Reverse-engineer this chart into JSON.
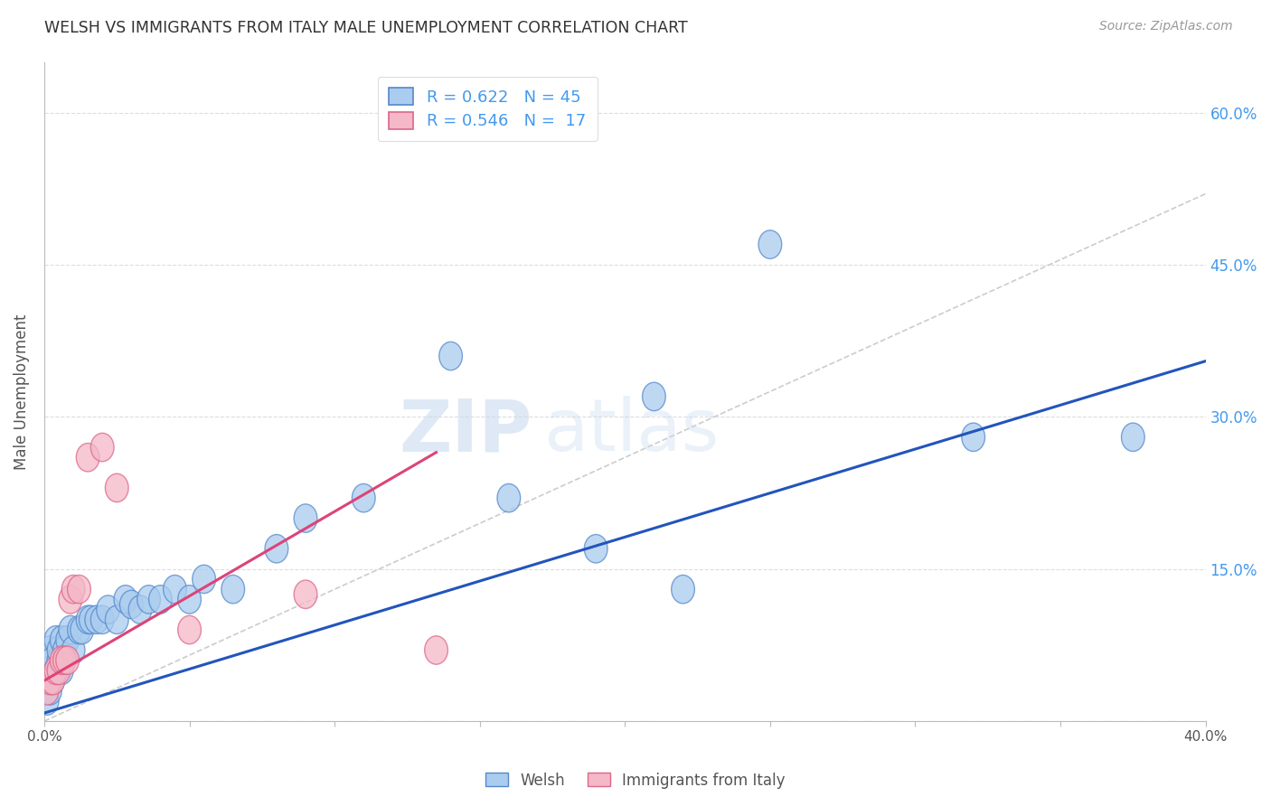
{
  "title": "WELSH VS IMMIGRANTS FROM ITALY MALE UNEMPLOYMENT CORRELATION CHART",
  "source": "Source: ZipAtlas.com",
  "ylabel": "Male Unemployment",
  "xlim": [
    0.0,
    0.4
  ],
  "ylim": [
    0.0,
    0.65
  ],
  "xticks": [
    0.0,
    0.05,
    0.1,
    0.15,
    0.2,
    0.25,
    0.3,
    0.35,
    0.4
  ],
  "ytick_positions": [
    0.0,
    0.15,
    0.3,
    0.45,
    0.6
  ],
  "yticklabels_right": [
    "",
    "15.0%",
    "30.0%",
    "45.0%",
    "60.0%"
  ],
  "grid_color": "#dddddd",
  "background_color": "#ffffff",
  "watermark": "ZIPatlas",
  "legend_welsh_r": "0.622",
  "legend_welsh_n": "45",
  "legend_italy_r": "0.546",
  "legend_italy_n": "17",
  "welsh_color": "#aaccee",
  "italy_color": "#f4b8c8",
  "welsh_edge_color": "#5588cc",
  "italy_edge_color": "#dd6688",
  "welsh_line_color": "#2255bb",
  "italy_line_color": "#dd4477",
  "trendline_color": "#cccccc",
  "welsh_x": [
    0.001,
    0.001,
    0.002,
    0.002,
    0.002,
    0.003,
    0.003,
    0.004,
    0.004,
    0.005,
    0.005,
    0.006,
    0.006,
    0.007,
    0.008,
    0.009,
    0.01,
    0.012,
    0.013,
    0.015,
    0.016,
    0.018,
    0.02,
    0.022,
    0.025,
    0.028,
    0.03,
    0.033,
    0.036,
    0.04,
    0.045,
    0.05,
    0.055,
    0.065,
    0.08,
    0.09,
    0.11,
    0.14,
    0.16,
    0.19,
    0.21,
    0.22,
    0.25,
    0.32,
    0.375
  ],
  "welsh_y": [
    0.02,
    0.04,
    0.03,
    0.05,
    0.07,
    0.04,
    0.06,
    0.05,
    0.08,
    0.06,
    0.07,
    0.05,
    0.08,
    0.07,
    0.08,
    0.09,
    0.07,
    0.09,
    0.09,
    0.1,
    0.1,
    0.1,
    0.1,
    0.11,
    0.1,
    0.12,
    0.115,
    0.11,
    0.12,
    0.12,
    0.13,
    0.12,
    0.14,
    0.13,
    0.17,
    0.2,
    0.22,
    0.36,
    0.22,
    0.17,
    0.32,
    0.13,
    0.47,
    0.28,
    0.28
  ],
  "italy_x": [
    0.001,
    0.002,
    0.003,
    0.004,
    0.005,
    0.006,
    0.007,
    0.008,
    0.009,
    0.01,
    0.012,
    0.015,
    0.02,
    0.025,
    0.05,
    0.09,
    0.135
  ],
  "italy_y": [
    0.03,
    0.04,
    0.04,
    0.05,
    0.05,
    0.06,
    0.06,
    0.06,
    0.12,
    0.13,
    0.13,
    0.26,
    0.27,
    0.23,
    0.09,
    0.125,
    0.07
  ],
  "welsh_line_x0": 0.0,
  "welsh_line_y0": 0.008,
  "welsh_line_x1": 0.4,
  "welsh_line_y1": 0.355,
  "italy_line_x0": 0.0,
  "italy_line_y0": 0.04,
  "italy_line_x1": 0.135,
  "italy_line_y1": 0.265,
  "dash_line_x0": 0.0,
  "dash_line_y0": 0.0,
  "dash_line_x1": 0.4,
  "dash_line_y1": 0.52
}
